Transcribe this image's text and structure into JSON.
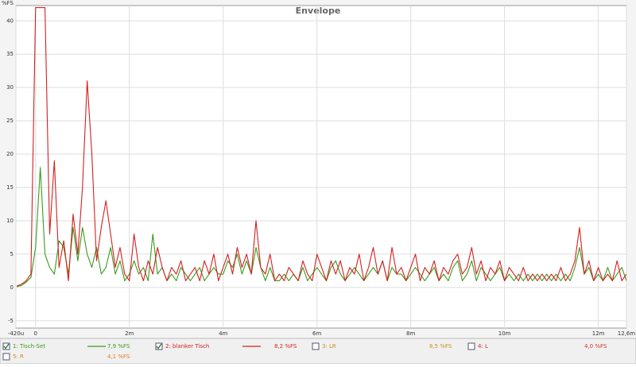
{
  "chart_data": {
    "type": "line",
    "title": "Envelope",
    "y_label": "%FS",
    "xlim": [
      -0.42,
      12.6
    ],
    "ylim": [
      -6.1,
      42.3
    ],
    "xticks": [
      {
        "value": -0.42,
        "label": "-420u"
      },
      0,
      {
        "value": 2,
        "label": "2m"
      },
      {
        "value": 4,
        "label": "4m"
      },
      {
        "value": 6,
        "label": "6m"
      },
      {
        "value": 8,
        "label": "8m"
      },
      {
        "value": 10,
        "label": "10m"
      },
      {
        "value": 12,
        "label": "12m"
      },
      {
        "value": 12.6,
        "label": "12,6m"
      }
    ],
    "yticks": [
      -5,
      0,
      5,
      10,
      15,
      20,
      25,
      30,
      35,
      40
    ],
    "grid": true,
    "x": [
      -0.4,
      -0.3,
      -0.2,
      -0.1,
      0,
      0.1,
      0.2,
      0.3,
      0.4,
      0.5,
      0.6,
      0.7,
      0.8,
      0.9,
      1,
      1.1,
      1.2,
      1.3,
      1.4,
      1.5,
      1.6,
      1.7,
      1.8,
      1.9,
      2,
      2.1,
      2.2,
      2.3,
      2.4,
      2.5,
      2.6,
      2.7,
      2.8,
      2.9,
      3,
      3.1,
      3.2,
      3.3,
      3.4,
      3.5,
      3.6,
      3.7,
      3.8,
      3.9,
      4,
      4.1,
      4.2,
      4.3,
      4.4,
      4.5,
      4.6,
      4.7,
      4.8,
      4.9,
      5,
      5.1,
      5.2,
      5.3,
      5.4,
      5.5,
      5.6,
      5.7,
      5.8,
      5.9,
      6,
      6.1,
      6.2,
      6.3,
      6.4,
      6.5,
      6.6,
      6.7,
      6.8,
      6.9,
      7,
      7.1,
      7.2,
      7.3,
      7.4,
      7.5,
      7.6,
      7.7,
      7.8,
      7.9,
      8,
      8.1,
      8.2,
      8.3,
      8.4,
      8.5,
      8.6,
      8.7,
      8.8,
      8.9,
      9,
      9.1,
      9.2,
      9.3,
      9.4,
      9.5,
      9.6,
      9.7,
      9.8,
      9.9,
      10,
      10.1,
      10.2,
      10.3,
      10.4,
      10.5,
      10.6,
      10.7,
      10.8,
      10.9,
      11,
      11.1,
      11.2,
      11.3,
      11.4,
      11.5,
      11.6,
      11.7,
      11.8,
      11.9,
      12,
      12.1,
      12.2,
      12.3,
      12.4,
      12.5,
      12.6
    ],
    "series": [
      {
        "name": "1: Tisch-Set",
        "color": "#3c9a1c",
        "checked": true,
        "level": "7,9 %FS",
        "values": [
          0.1,
          0.3,
          0.8,
          1.5,
          6,
          18,
          5,
          3,
          2,
          7,
          6,
          2,
          9,
          4,
          9,
          5,
          3,
          6,
          2,
          3,
          6,
          2,
          4,
          1,
          2,
          4,
          2,
          3,
          1,
          8,
          2,
          3,
          1,
          2,
          1,
          3,
          2,
          1,
          2,
          3,
          1,
          2,
          3,
          2,
          2,
          4,
          3,
          5,
          2,
          4,
          2,
          6,
          3,
          1,
          3,
          1,
          1,
          2,
          1,
          2,
          1,
          3,
          1,
          2,
          3,
          2,
          1,
          3,
          4,
          2,
          1,
          2,
          3,
          2,
          1,
          2,
          3,
          2,
          4,
          1,
          3,
          2,
          2,
          1,
          2,
          3,
          2,
          1,
          2,
          3,
          1,
          2,
          1,
          3,
          4,
          1,
          2,
          4,
          1,
          3,
          2,
          1,
          2,
          3,
          1,
          2,
          1,
          2,
          1,
          2,
          1,
          2,
          1,
          2,
          1,
          2,
          1,
          2,
          1,
          3,
          6,
          2,
          3,
          1,
          2,
          1,
          3,
          1,
          2,
          3,
          1
        ]
      },
      {
        "name": "2: blanker Tisch",
        "color": "#d42020",
        "checked": true,
        "level": "8,2 %FS",
        "values": [
          0.2,
          0.5,
          1,
          2,
          42,
          42,
          42,
          8,
          19,
          3,
          7,
          1,
          11,
          5,
          15,
          31,
          20,
          4,
          9,
          13,
          8,
          3,
          6,
          2,
          1,
          8,
          3,
          1,
          4,
          2,
          6,
          3,
          1,
          3,
          2,
          4,
          1,
          2,
          3,
          1,
          4,
          2,
          5,
          1,
          3,
          5,
          2,
          6,
          3,
          5,
          2,
          10,
          3,
          2,
          5,
          1,
          2,
          1,
          3,
          2,
          1,
          4,
          2,
          1,
          5,
          3,
          1,
          4,
          2,
          4,
          1,
          3,
          2,
          5,
          1,
          3,
          6,
          2,
          4,
          1,
          6,
          2,
          3,
          1,
          3,
          5,
          1,
          3,
          2,
          4,
          1,
          3,
          2,
          4,
          5,
          2,
          3,
          6,
          2,
          4,
          1,
          3,
          2,
          4,
          1,
          3,
          2,
          1,
          3,
          1,
          2,
          1,
          2,
          1,
          2,
          1,
          3,
          1,
          2,
          4,
          9,
          2,
          4,
          1,
          3,
          1,
          2,
          1,
          4,
          1,
          2
        ]
      }
    ],
    "hidden_series": [
      {
        "name": "3: LR",
        "color": "#c8901a",
        "checked": false,
        "level": "8,5 %FS"
      },
      {
        "name": "4: L",
        "color": "#d03030",
        "checked": false,
        "level": "4,0 %FS"
      },
      {
        "name": "5: R",
        "color": "#e08020",
        "checked": false,
        "level": "4,1 %FS"
      }
    ]
  }
}
